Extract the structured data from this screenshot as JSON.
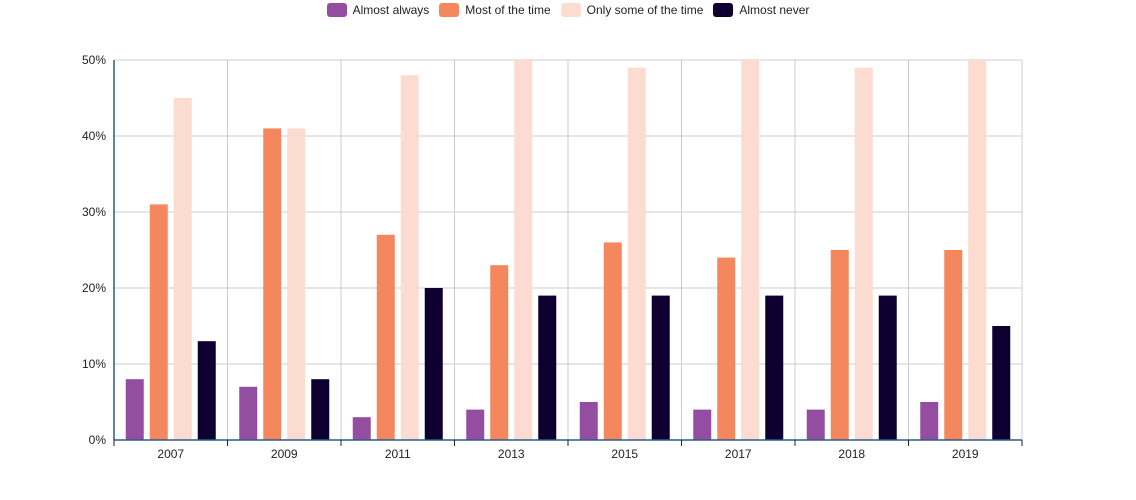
{
  "chart_data": {
    "type": "bar",
    "categories": [
      "2007",
      "2009",
      "2011",
      "2013",
      "2015",
      "2017",
      "2018",
      "2019"
    ],
    "series": [
      {
        "name": "Almost always",
        "color": "#944ea1",
        "values": [
          8,
          7,
          3,
          4,
          5,
          4,
          4,
          5
        ]
      },
      {
        "name": "Most of the time",
        "color": "#f4875e",
        "values": [
          31,
          41,
          27,
          23,
          26,
          24,
          25,
          25
        ]
      },
      {
        "name": "Only some of the time",
        "color": "#fcdbd0",
        "values": [
          45,
          41,
          48,
          50,
          49,
          50,
          49,
          50
        ]
      },
      {
        "name": "Almost never",
        "color": "#0d0030",
        "values": [
          13,
          8,
          20,
          19,
          19,
          19,
          19,
          15
        ]
      }
    ],
    "ylim": [
      0,
      50
    ],
    "yticks": [
      "0%",
      "10%",
      "20%",
      "30%",
      "40%",
      "50%"
    ],
    "xlabel": "",
    "ylabel": "",
    "grid": true,
    "legend_position": "top-center"
  }
}
